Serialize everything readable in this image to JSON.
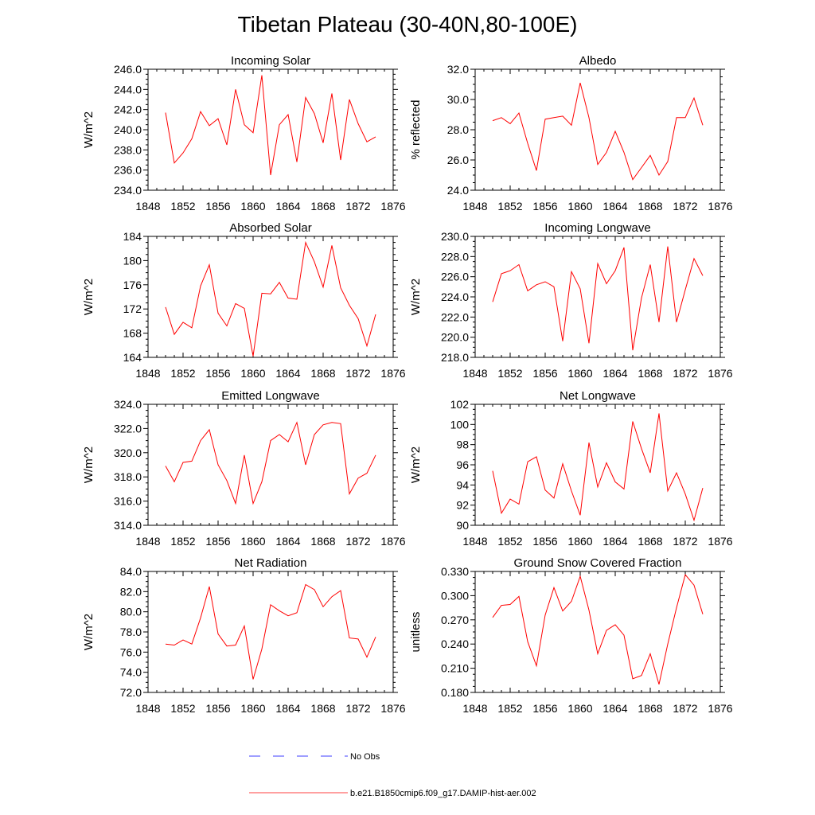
{
  "title": "Tibetan Plateau (30-40N,80-100E)",
  "chart_data": [
    {
      "type": "line",
      "title": "Incoming Solar",
      "ylabel": "W/m^2",
      "xlim": [
        1848,
        1876
      ],
      "xticks": [
        "1848",
        "1852",
        "1856",
        "1860",
        "1864",
        "1868",
        "1872",
        "1876"
      ],
      "ylim": [
        234.0,
        246.0
      ],
      "yticks": [
        "234.0",
        "236.0",
        "238.0",
        "240.0",
        "242.0",
        "244.0",
        "246.0"
      ],
      "x": [
        1850,
        1851,
        1852,
        1853,
        1854,
        1855,
        1856,
        1857,
        1858,
        1859,
        1860,
        1861,
        1862,
        1863,
        1864,
        1865,
        1866,
        1867,
        1868,
        1869,
        1870,
        1871,
        1872,
        1873,
        1874
      ],
      "series": [
        {
          "name": "b.e21.B1850cmip6.f09_g17.DAMIP-hist-aer.002",
          "values": [
            241.7,
            236.7,
            237.7,
            239.1,
            241.8,
            240.4,
            241.1,
            238.5,
            244.0,
            240.5,
            239.7,
            245.4,
            235.5,
            240.5,
            241.5,
            236.8,
            243.2,
            241.6,
            238.7,
            243.6,
            237.0,
            243.0,
            240.6,
            238.8,
            239.3
          ]
        }
      ]
    },
    {
      "type": "line",
      "title": "Albedo",
      "ylabel": "% reflected",
      "xlim": [
        1848,
        1876
      ],
      "xticks": [
        "1848",
        "1852",
        "1856",
        "1860",
        "1864",
        "1868",
        "1872",
        "1876"
      ],
      "ylim": [
        24.0,
        32.0
      ],
      "yticks": [
        "24.0",
        "26.0",
        "28.0",
        "30.0",
        "32.0"
      ],
      "x": [
        1850,
        1851,
        1852,
        1853,
        1854,
        1855,
        1856,
        1857,
        1858,
        1859,
        1860,
        1861,
        1862,
        1863,
        1864,
        1865,
        1866,
        1867,
        1868,
        1869,
        1870,
        1871,
        1872,
        1873,
        1874
      ],
      "series": [
        {
          "name": "b.e21.B1850cmip6.f09_g17.DAMIP-hist-aer.002",
          "values": [
            28.6,
            28.8,
            28.4,
            29.1,
            27.1,
            25.3,
            28.7,
            28.8,
            28.9,
            28.3,
            31.1,
            28.8,
            25.7,
            26.5,
            27.9,
            26.5,
            24.7,
            25.5,
            26.3,
            25.0,
            25.9,
            28.8,
            28.8,
            30.1,
            28.3
          ]
        }
      ]
    },
    {
      "type": "line",
      "title": "Absorbed Solar",
      "ylabel": "W/m^2",
      "xlim": [
        1848,
        1876
      ],
      "xticks": [
        "1848",
        "1852",
        "1856",
        "1860",
        "1864",
        "1868",
        "1872",
        "1876"
      ],
      "ylim": [
        164,
        184
      ],
      "yticks": [
        "164",
        "168",
        "172",
        "176",
        "180",
        "184"
      ],
      "x": [
        1850,
        1851,
        1852,
        1853,
        1854,
        1855,
        1856,
        1857,
        1858,
        1859,
        1860,
        1861,
        1862,
        1863,
        1864,
        1865,
        1866,
        1867,
        1868,
        1869,
        1870,
        1871,
        1872,
        1873,
        1874
      ],
      "series": [
        {
          "name": "b.e21.B1850cmip6.f09_g17.DAMIP-hist-aer.002",
          "values": [
            172.3,
            167.8,
            169.8,
            168.9,
            175.8,
            179.3,
            171.3,
            169.2,
            172.9,
            172.1,
            164.2,
            174.6,
            174.5,
            176.4,
            173.8,
            173.6,
            183.0,
            179.8,
            175.6,
            182.5,
            175.5,
            172.6,
            170.4,
            165.9,
            171.1
          ]
        }
      ]
    },
    {
      "type": "line",
      "title": "Incoming Longwave",
      "ylabel": "W/m^2",
      "xlim": [
        1848,
        1876
      ],
      "xticks": [
        "1848",
        "1852",
        "1856",
        "1860",
        "1864",
        "1868",
        "1872",
        "1876"
      ],
      "ylim": [
        218.0,
        230.0
      ],
      "yticks": [
        "218.0",
        "220.0",
        "222.0",
        "224.0",
        "226.0",
        "228.0",
        "230.0"
      ],
      "x": [
        1850,
        1851,
        1852,
        1853,
        1854,
        1855,
        1856,
        1857,
        1858,
        1859,
        1860,
        1861,
        1862,
        1863,
        1864,
        1865,
        1866,
        1867,
        1868,
        1869,
        1870,
        1871,
        1872,
        1873,
        1874
      ],
      "series": [
        {
          "name": "b.e21.B1850cmip6.f09_g17.DAMIP-hist-aer.002",
          "values": [
            223.5,
            226.3,
            226.6,
            227.2,
            224.6,
            225.2,
            225.5,
            225.0,
            219.6,
            226.5,
            224.8,
            219.4,
            227.3,
            225.3,
            226.6,
            228.9,
            218.7,
            223.9,
            227.2,
            221.5,
            229.0,
            221.5,
            224.7,
            227.8,
            226.1
          ]
        }
      ]
    },
    {
      "type": "line",
      "title": "Emitted Longwave",
      "ylabel": "W/m^2",
      "xlim": [
        1848,
        1876
      ],
      "xticks": [
        "1848",
        "1852",
        "1856",
        "1860",
        "1864",
        "1868",
        "1872",
        "1876"
      ],
      "ylim": [
        314.0,
        324.0
      ],
      "yticks": [
        "314.0",
        "316.0",
        "318.0",
        "320.0",
        "322.0",
        "324.0"
      ],
      "x": [
        1850,
        1851,
        1852,
        1853,
        1854,
        1855,
        1856,
        1857,
        1858,
        1859,
        1860,
        1861,
        1862,
        1863,
        1864,
        1865,
        1866,
        1867,
        1868,
        1869,
        1870,
        1871,
        1872,
        1873,
        1874
      ],
      "series": [
        {
          "name": "b.e21.B1850cmip6.f09_g17.DAMIP-hist-aer.002",
          "values": [
            318.9,
            317.6,
            319.2,
            319.3,
            321.0,
            321.9,
            319.0,
            317.7,
            315.8,
            319.8,
            315.8,
            317.6,
            321.0,
            321.5,
            320.9,
            322.5,
            319.0,
            321.5,
            322.3,
            322.5,
            322.4,
            316.6,
            317.9,
            318.3,
            319.8
          ]
        }
      ]
    },
    {
      "type": "line",
      "title": "Net Longwave",
      "ylabel": "W/m^2",
      "xlim": [
        1848,
        1876
      ],
      "xticks": [
        "1848",
        "1852",
        "1856",
        "1860",
        "1864",
        "1868",
        "1872",
        "1876"
      ],
      "ylim": [
        90,
        102
      ],
      "yticks": [
        "90",
        "92",
        "94",
        "96",
        "98",
        "100",
        "102"
      ],
      "x": [
        1850,
        1851,
        1852,
        1853,
        1854,
        1855,
        1856,
        1857,
        1858,
        1859,
        1860,
        1861,
        1862,
        1863,
        1864,
        1865,
        1866,
        1867,
        1868,
        1869,
        1870,
        1871,
        1872,
        1873,
        1874
      ],
      "series": [
        {
          "name": "b.e21.B1850cmip6.f09_g17.DAMIP-hist-aer.002",
          "values": [
            95.4,
            91.2,
            92.6,
            92.1,
            96.3,
            96.8,
            93.5,
            92.7,
            96.1,
            93.4,
            91.0,
            98.2,
            93.8,
            96.2,
            94.3,
            93.6,
            100.3,
            97.6,
            95.2,
            101.1,
            93.4,
            95.2,
            93.1,
            90.5,
            93.7
          ]
        }
      ]
    },
    {
      "type": "line",
      "title": "Net Radiation",
      "ylabel": "W/m^2",
      "xlim": [
        1848,
        1876
      ],
      "xticks": [
        "1848",
        "1852",
        "1856",
        "1860",
        "1864",
        "1868",
        "1872",
        "1876"
      ],
      "ylim": [
        72.0,
        84.0
      ],
      "yticks": [
        "72.0",
        "74.0",
        "76.0",
        "78.0",
        "80.0",
        "82.0",
        "84.0"
      ],
      "x": [
        1850,
        1851,
        1852,
        1853,
        1854,
        1855,
        1856,
        1857,
        1858,
        1859,
        1860,
        1861,
        1862,
        1863,
        1864,
        1865,
        1866,
        1867,
        1868,
        1869,
        1870,
        1871,
        1872,
        1873,
        1874
      ],
      "series": [
        {
          "name": "b.e21.B1850cmip6.f09_g17.DAMIP-hist-aer.002",
          "values": [
            76.8,
            76.7,
            77.2,
            76.8,
            79.4,
            82.5,
            77.8,
            76.6,
            76.7,
            78.6,
            73.3,
            76.3,
            80.7,
            80.1,
            79.6,
            79.9,
            82.7,
            82.2,
            80.5,
            81.5,
            82.1,
            77.4,
            77.3,
            75.5,
            77.5
          ]
        }
      ]
    },
    {
      "type": "line",
      "title": "Ground Snow Covered Fraction",
      "ylabel": "unitless",
      "xlim": [
        1848,
        1876
      ],
      "xticks": [
        "1848",
        "1852",
        "1856",
        "1860",
        "1864",
        "1868",
        "1872",
        "1876"
      ],
      "ylim": [
        0.18,
        0.33
      ],
      "yticks": [
        "0.180",
        "0.210",
        "0.240",
        "0.270",
        "0.300",
        "0.330"
      ],
      "x": [
        1850,
        1851,
        1852,
        1853,
        1854,
        1855,
        1856,
        1857,
        1858,
        1859,
        1860,
        1861,
        1862,
        1863,
        1864,
        1865,
        1866,
        1867,
        1868,
        1869,
        1870,
        1871,
        1872,
        1873,
        1874
      ],
      "series": [
        {
          "name": "b.e21.B1850cmip6.f09_g17.DAMIP-hist-aer.002",
          "values": [
            0.273,
            0.288,
            0.289,
            0.299,
            0.243,
            0.213,
            0.276,
            0.31,
            0.281,
            0.293,
            0.324,
            0.282,
            0.228,
            0.257,
            0.264,
            0.251,
            0.197,
            0.201,
            0.228,
            0.19,
            0.24,
            0.285,
            0.326,
            0.313,
            0.277
          ]
        }
      ]
    }
  ],
  "legend": {
    "items": [
      {
        "label": "No Obs",
        "color": "#0000ff",
        "style": "dashed"
      },
      {
        "label": "b.e21.B1850cmip6.f09_g17.DAMIP-hist-aer.002",
        "color": "#ff0000",
        "style": "solid"
      }
    ]
  }
}
